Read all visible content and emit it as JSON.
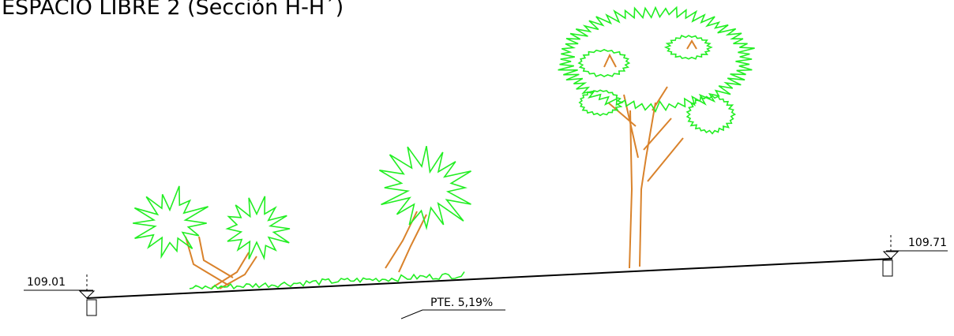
{
  "title": "ESPACIO LIBRE 2 (Sección H-H´)",
  "levels": {
    "left": "109.01",
    "right": "109.71"
  },
  "slope": "PTE. 5,19%"
}
